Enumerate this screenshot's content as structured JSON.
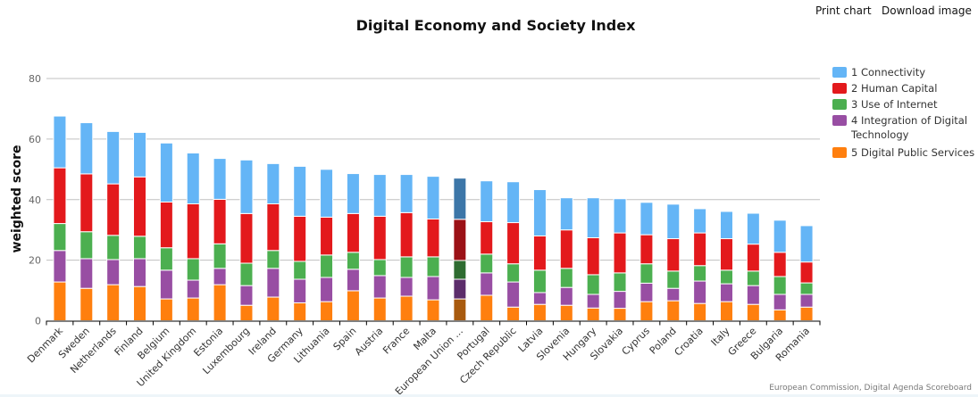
{
  "menu": {
    "print_label": "Print chart",
    "download_label": "Download image"
  },
  "credits": "European Commission, Digital Agenda Scoreboard",
  "chart_data": {
    "type": "bar",
    "stacked": true,
    "title": "Digital Economy and Society Index",
    "xlabel": "",
    "ylabel": "weighted score",
    "ylim": [
      0,
      80
    ],
    "yticks": [
      0,
      20,
      40,
      60,
      80
    ],
    "grid": true,
    "legend_position": "right",
    "categories": [
      "Denmark",
      "Sweden",
      "Netherlands",
      "Finland",
      "Belgium",
      "United Kingdom",
      "Estonia",
      "Luxembourg",
      "Ireland",
      "Germany",
      "Lithuania",
      "Spain",
      "Austria",
      "France",
      "Malta",
      "European Union ...",
      "Portugal",
      "Czech Republic",
      "Latvia",
      "Slovenia",
      "Hungary",
      "Slovakia",
      "Cyprus",
      "Poland",
      "Croatia",
      "Italy",
      "Greece",
      "Bulgaria",
      "Romania"
    ],
    "highlight_category": "European Union ...",
    "series": [
      {
        "name": "1 Connectivity",
        "color": "#64b5f6",
        "highlight_color": "#3c76a8",
        "values": [
          17.1,
          16.9,
          17.3,
          14.7,
          19.5,
          16.8,
          13.5,
          17.7,
          13.3,
          16.5,
          15.8,
          13.2,
          13.8,
          12.6,
          14.1,
          13.6,
          13.5,
          13.5,
          15.3,
          10.6,
          13.2,
          11.3,
          10.7,
          11.4,
          8.0,
          9.0,
          10.2,
          10.6,
          12.0
        ]
      },
      {
        "name": "2 Human Capital",
        "color": "#e3191c",
        "highlight_color": "#9b1116",
        "values": [
          18.4,
          19.1,
          17.0,
          19.6,
          15.1,
          18.1,
          14.7,
          16.4,
          15.4,
          14.9,
          12.5,
          12.8,
          14.3,
          14.6,
          12.5,
          13.6,
          10.7,
          13.6,
          11.3,
          12.7,
          12.2,
          13.2,
          9.6,
          10.7,
          10.8,
          10.4,
          8.9,
          8.0,
          6.9
        ]
      },
      {
        "name": "3 Use of Internet",
        "color": "#4caf50",
        "highlight_color": "#2e6b30",
        "values": [
          8.9,
          8.9,
          8.0,
          7.4,
          7.4,
          7.1,
          8.1,
          7.4,
          5.9,
          5.9,
          7.4,
          5.6,
          5.3,
          6.8,
          6.5,
          6.2,
          6.2,
          6.0,
          7.4,
          6.3,
          6.5,
          6.1,
          6.4,
          5.7,
          5.1,
          4.5,
          4.8,
          5.9,
          3.8
        ]
      },
      {
        "name": "4 Integration of Digital Technology",
        "color": "#984ea3",
        "highlight_color": "#5c2d6b",
        "values": [
          10.4,
          9.8,
          8.3,
          9.2,
          9.5,
          5.9,
          5.4,
          6.5,
          9.5,
          7.8,
          8.0,
          7.1,
          7.4,
          6.2,
          7.7,
          6.5,
          7.4,
          8.3,
          3.9,
          5.9,
          4.5,
          5.6,
          6.1,
          4.1,
          7.4,
          5.9,
          6.2,
          5.1,
          4.2
        ]
      },
      {
        "name": "5 Digital Public Services",
        "color": "#ff7f0e",
        "highlight_color": "#a85a0e",
        "values": [
          12.8,
          10.7,
          11.9,
          11.3,
          7.2,
          7.5,
          11.9,
          5.1,
          7.8,
          5.9,
          6.3,
          9.9,
          7.5,
          8.1,
          6.9,
          7.2,
          8.4,
          4.5,
          5.4,
          5.1,
          4.2,
          4.1,
          6.3,
          6.6,
          5.7,
          6.3,
          5.4,
          3.6,
          4.5
        ]
      }
    ],
    "legend": [
      {
        "label": "1 Connectivity",
        "color": "#64b5f6"
      },
      {
        "label": "2 Human Capital",
        "color": "#e3191c"
      },
      {
        "label": "3 Use of Internet",
        "color": "#4caf50"
      },
      {
        "label": "4 Integration of Digital Technology",
        "label_lines": [
          "4 Integration of Digital",
          "Technology"
        ],
        "color": "#984ea3"
      },
      {
        "label": "5 Digital Public Services",
        "color": "#ff7f0e"
      }
    ]
  }
}
